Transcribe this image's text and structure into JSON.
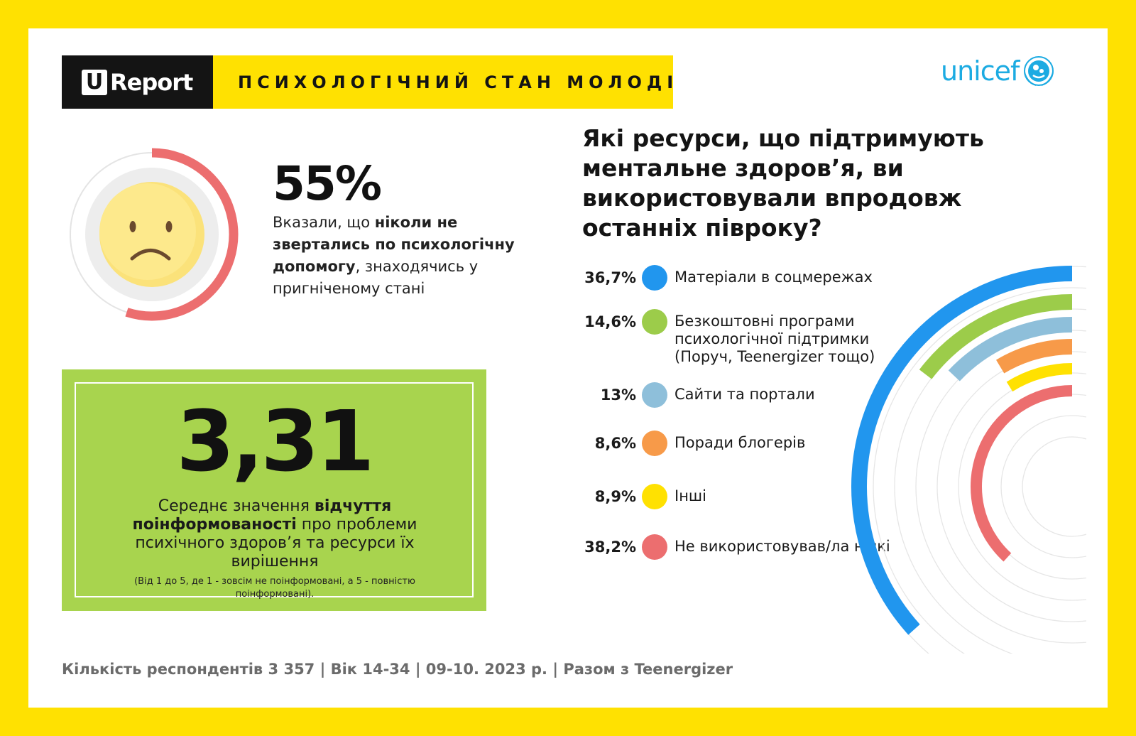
{
  "header": {
    "brand_u": "U",
    "brand_word": "Report",
    "title": "ПСИХОЛОГІЧНИЙ СТАН МОЛОДІ",
    "partner_logo": "unicef"
  },
  "stat_55": {
    "value": "55%",
    "fraction": 0.55,
    "text_before": "Вказали, що ",
    "text_bold": "ніколи не звертались по психологічну допомогу",
    "text_after": ", знаходячись у пригніченому стані",
    "ring_color": "#EC6E6F",
    "face_icon": "sad-face-icon"
  },
  "awareness": {
    "value": "3,31",
    "text_before": "Середнє значення ",
    "text_bold": "відчуття поінформованості",
    "text_after": " про проблеми психічного здоров’я та ресурси їх вирішення",
    "note": "(Від 1 до 5, де 1 - зовсім не поінформовані, а 5 - повністю поінформовані).",
    "bg_color": "#A8D44E"
  },
  "question": "Які ресурси, що підтримують ментальне здоров’я, ви використовували впродовж останніх півроку?",
  "chart_data": {
    "type": "radial-bar",
    "categories": [
      "Матеріали в соцмережах",
      "Безкоштовні програми психологічної підтримки (Поруч, Teenergizer тощо)",
      "Сайти та портали",
      "Поради блогерів",
      "Інші",
      "Не використовував/ла ніякі"
    ],
    "values": [
      36.7,
      14.6,
      13,
      8.6,
      8.9,
      38.2
    ],
    "labels": [
      "36,7%",
      "14,6%",
      "13%",
      "8,6%",
      "8,9%",
      "38,2%"
    ],
    "colors": [
      "#2196EE",
      "#9CCC4A",
      "#8EBFDA",
      "#F79A49",
      "#FFE101",
      "#EC6E6F"
    ],
    "unit": "%"
  },
  "footer": "Кількість респондентів 3 357 |  Вік 14-34 | 09-10. 2023 р. | Разом з Teenergizer"
}
